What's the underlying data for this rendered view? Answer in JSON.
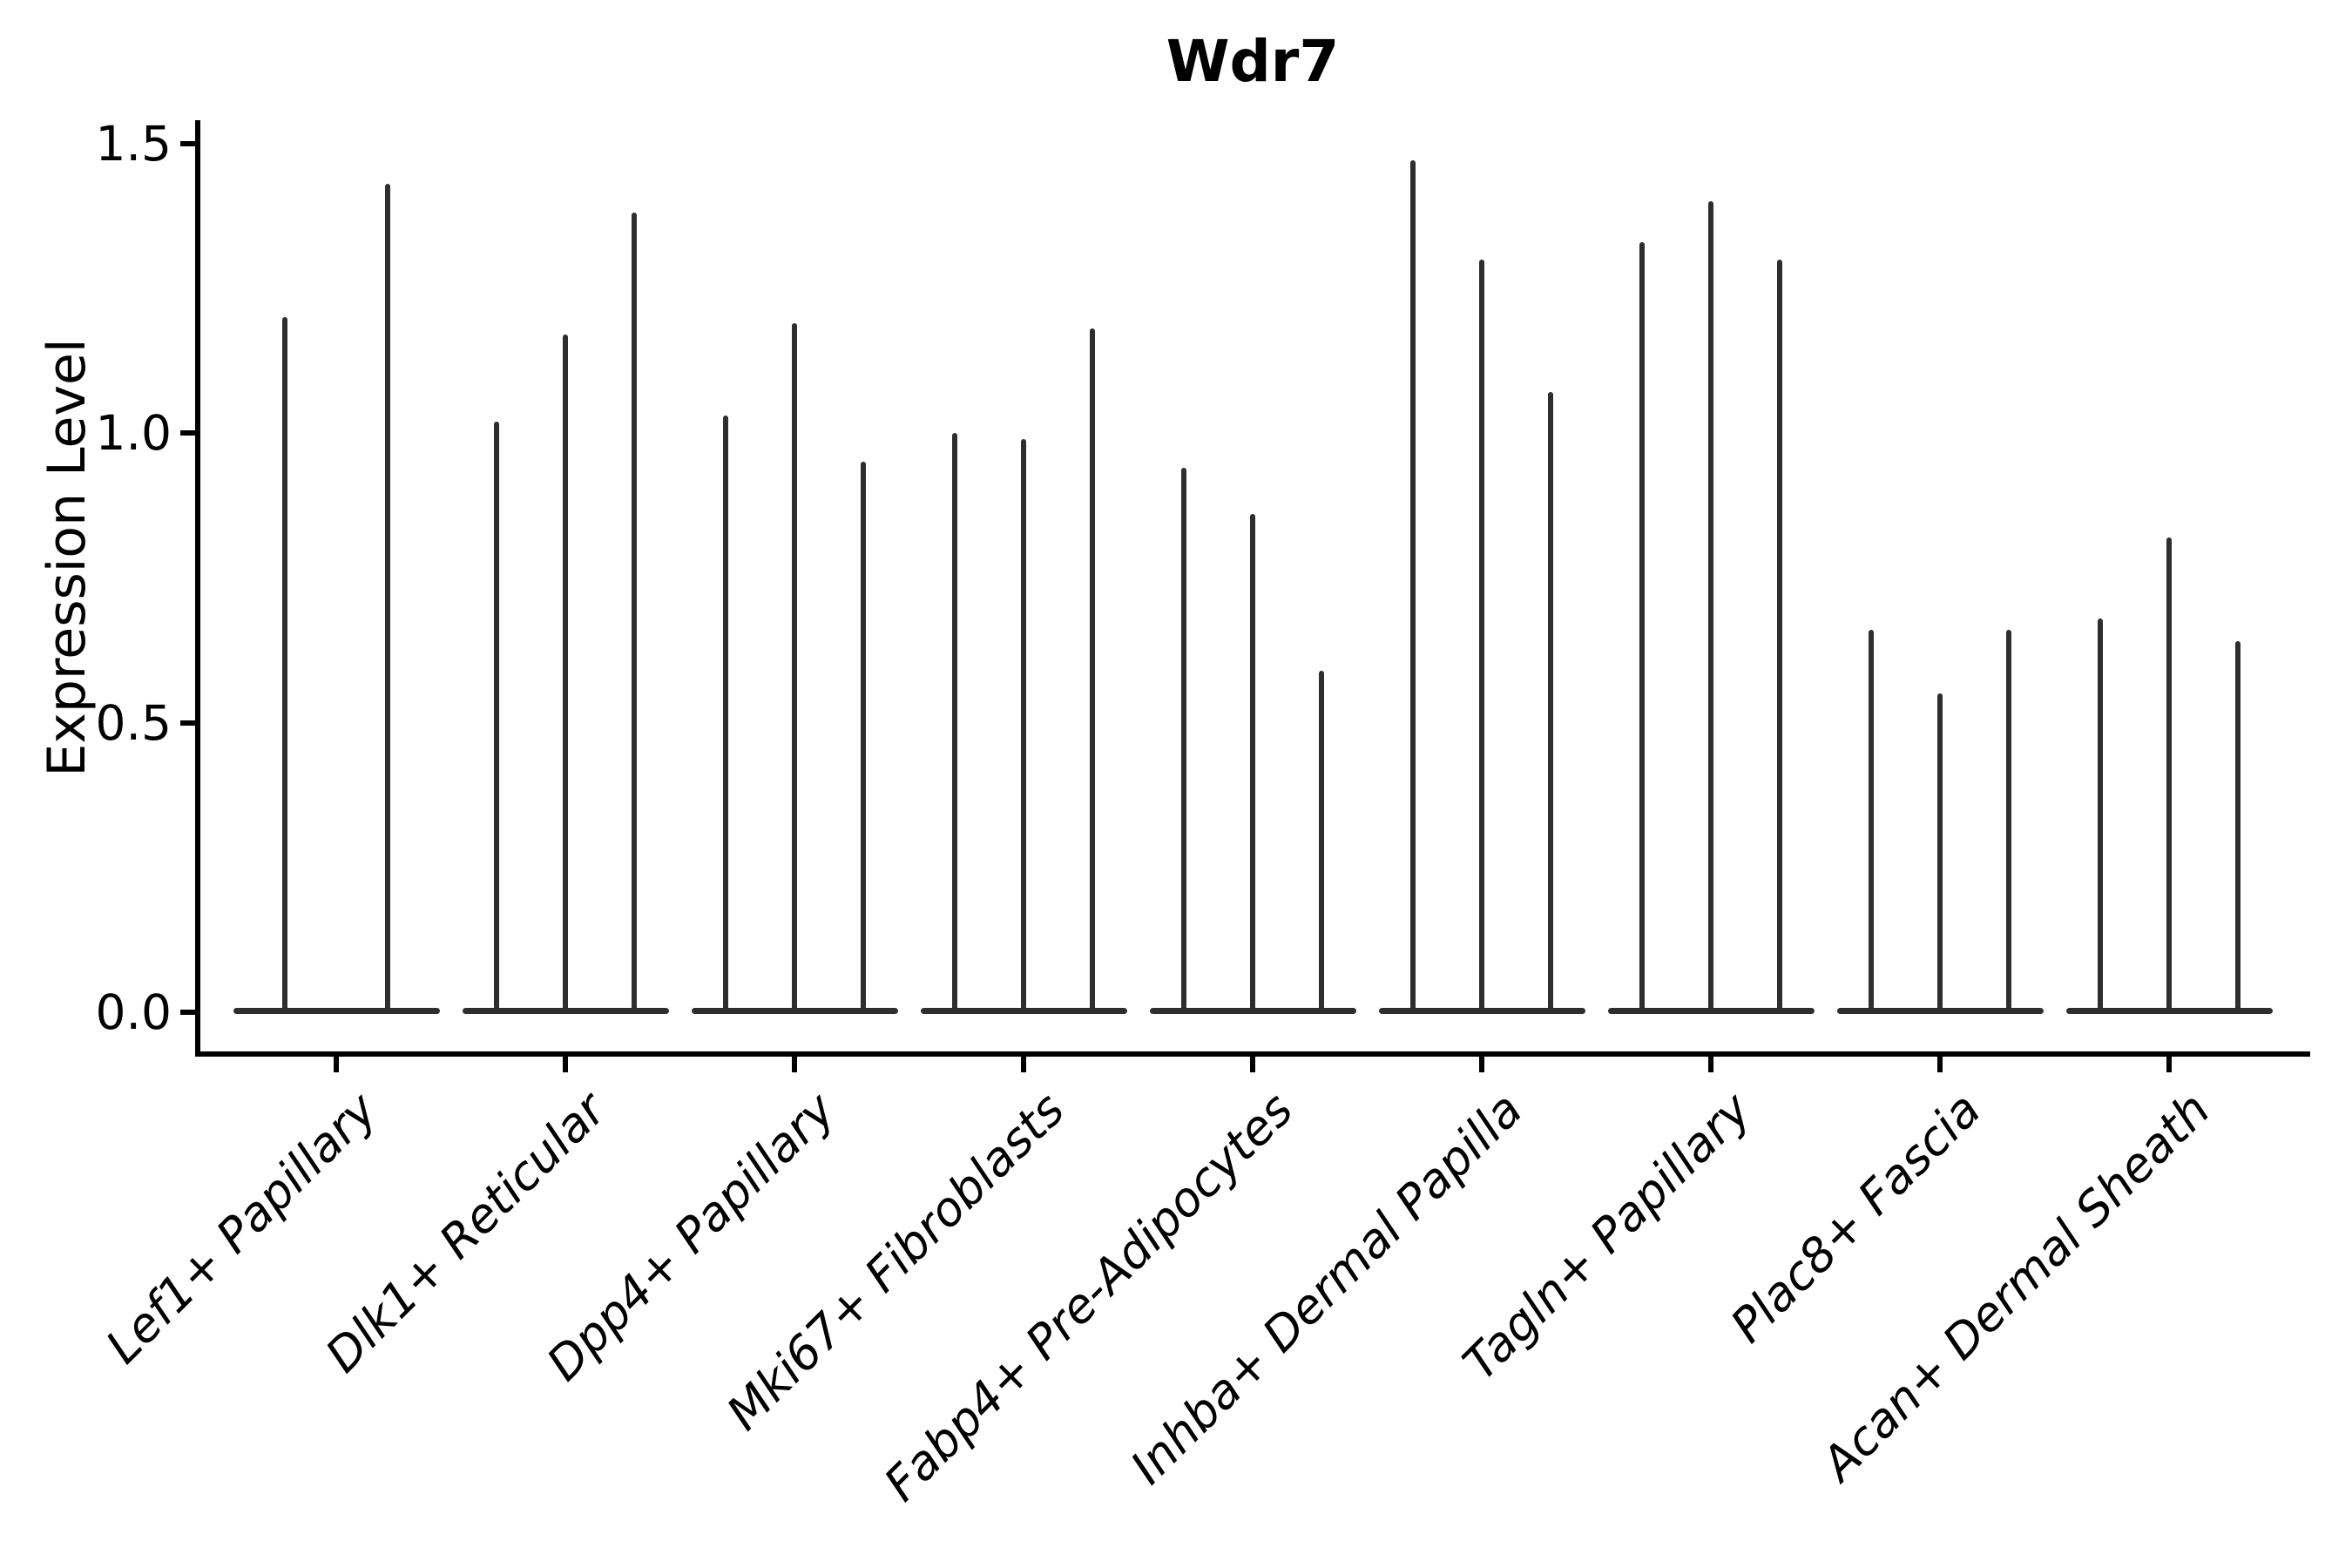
{
  "chart_data": {
    "type": "violin",
    "title": "Wdr7",
    "ylabel": "Expression Level",
    "xlabel": "",
    "ytick_labels": [
      "0.0",
      "0.5",
      "1.0",
      "1.5"
    ],
    "ytick_values": [
      0.0,
      0.5,
      1.0,
      1.5
    ],
    "ylim": [
      -0.07,
      1.57
    ],
    "grid": false,
    "legend": false,
    "x_tick_rotation_deg": 45,
    "x_tick_style": "italic",
    "categories": [
      "Lef1+ Papillary",
      "Dlk1+ Reticular",
      "Dpp4+ Papillary",
      "Mki67+ Fibroblasts",
      "Fabp4+ Pre-Adipocytes",
      "Inhba+ Dermal Papilla",
      "Tagln+ Papillary",
      "Plac8+ Fascia",
      "Acan+ Dermal Sheath"
    ],
    "values": [
      [
        1.2,
        1.43
      ],
      [
        1.02,
        1.17,
        1.38
      ],
      [
        1.03,
        1.19,
        0.95
      ],
      [
        1.0,
        0.99,
        1.18
      ],
      [
        0.94,
        0.86,
        0.59
      ],
      [
        1.47,
        1.3,
        1.07
      ],
      [
        1.33,
        1.4,
        1.3
      ],
      [
        0.66,
        0.55,
        0.66
      ],
      [
        0.68,
        0.82,
        0.64
      ]
    ],
    "violin_shape_note": "ultra-thin violins: flat dark base at 0 with a single thin spike rising to each violin's max expression",
    "violin_color": "#2e2e2e",
    "axis_color": "#000000",
    "background_color": "#ffffff"
  }
}
